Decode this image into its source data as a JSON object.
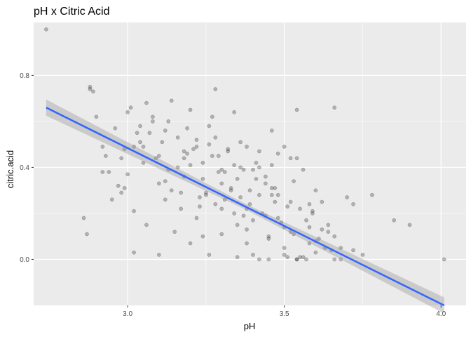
{
  "chart_data": {
    "type": "scatter",
    "title": "pH x Citric Acid",
    "xlabel": "pH",
    "ylabel": "citric.acid",
    "xlim": [
      2.7,
      4.08
    ],
    "ylim": [
      -0.2,
      1.03
    ],
    "x_ticks": [
      3.0,
      3.5,
      4.0
    ],
    "x_tick_labels": [
      "3.0",
      "3.5",
      "4.0"
    ],
    "y_ticks": [
      0.0,
      0.4,
      0.8
    ],
    "y_tick_labels": [
      "0.0",
      "0.4",
      "0.8"
    ],
    "grid": true,
    "legend": "none",
    "colors": {
      "panel": "#ebebeb",
      "gridline": "#ffffff",
      "points": "#000000",
      "fit_line": "#3366ff",
      "confidence_band": "#999999"
    },
    "series": [
      {
        "kind": "points",
        "opacity": 0.25,
        "x": [
          2.74,
          2.86,
          2.87,
          2.88,
          2.89,
          2.92,
          2.93,
          2.94,
          2.96,
          2.98,
          2.99,
          3.0,
          3.01,
          3.02,
          3.03,
          3.04,
          3.05,
          3.06,
          3.08,
          3.1,
          3.12,
          3.14,
          3.16,
          3.18,
          3.2,
          3.22,
          3.24,
          3.26,
          3.28,
          3.3,
          3.32,
          3.34,
          3.36,
          3.38,
          3.4,
          3.42,
          3.44,
          3.46,
          3.48,
          3.5,
          3.52,
          3.54,
          3.56,
          3.58,
          3.6,
          3.62,
          3.66,
          3.68,
          3.7,
          3.72,
          3.78,
          3.85,
          3.9,
          4.01,
          2.88,
          2.9,
          2.92,
          2.95,
          2.98,
          3.0,
          3.02,
          3.05,
          3.08,
          3.1,
          3.12,
          3.15,
          3.18,
          3.2,
          3.22,
          3.25,
          3.28,
          3.3,
          3.33,
          3.35,
          3.38,
          3.4,
          3.42,
          3.45,
          3.48,
          3.5,
          3.52,
          3.55,
          3.58,
          3.6,
          3.63,
          3.66,
          3.72,
          3.02,
          3.06,
          3.1,
          3.14,
          3.18,
          3.22,
          3.26,
          3.3,
          3.34,
          3.38,
          3.42,
          3.46,
          3.5,
          3.54,
          3.58,
          3.62,
          3.66,
          3.2,
          3.25,
          3.3,
          3.35,
          3.4,
          3.45,
          3.5,
          3.55,
          3.6,
          3.65,
          3.35,
          3.45,
          3.54,
          3.68,
          3.75,
          2.99,
          3.04,
          3.09,
          3.13,
          3.17,
          3.21,
          3.24,
          3.27,
          3.29,
          3.31,
          3.33,
          3.36,
          3.39,
          3.41,
          3.44,
          3.47,
          3.49,
          3.51,
          3.53,
          3.57,
          3.59,
          3.61,
          3.64,
          3.07,
          3.11,
          3.16,
          3.19,
          3.23,
          3.26,
          3.29,
          3.32,
          3.37,
          3.39,
          3.43,
          3.46,
          3.53,
          3.56,
          3.12,
          3.17,
          3.23,
          3.28,
          3.34,
          3.38,
          3.44,
          3.48,
          3.52,
          3.57,
          3.13,
          3.19,
          3.24,
          3.31,
          3.37,
          3.42,
          3.47,
          3.51,
          2.97,
          3.27,
          3.36,
          3.41,
          3.46,
          3.54,
          3.59,
          3.64
        ],
        "y": [
          1.0,
          0.18,
          0.11,
          0.75,
          0.73,
          0.49,
          0.45,
          0.38,
          0.57,
          0.29,
          0.31,
          0.64,
          0.66,
          0.21,
          0.55,
          0.51,
          0.49,
          0.68,
          0.62,
          0.45,
          0.56,
          0.69,
          0.53,
          0.47,
          0.65,
          0.49,
          0.42,
          0.58,
          0.74,
          0.39,
          0.47,
          0.64,
          0.4,
          0.49,
          0.39,
          0.47,
          0.33,
          0.56,
          0.28,
          0.49,
          0.44,
          0.65,
          0.39,
          0.24,
          0.3,
          0.25,
          0.66,
          0.05,
          0.27,
          0.24,
          0.28,
          0.17,
          0.15,
          0.0,
          0.74,
          0.62,
          0.38,
          0.26,
          0.44,
          0.37,
          0.03,
          0.42,
          0.6,
          0.33,
          0.26,
          0.12,
          0.36,
          0.07,
          0.52,
          0.29,
          0.24,
          0.11,
          0.31,
          0.15,
          0.22,
          0.02,
          0.28,
          0.1,
          0.18,
          0.05,
          0.12,
          0.22,
          0.14,
          0.08,
          0.05,
          0.1,
          0.04,
          0.49,
          0.15,
          0.02,
          0.3,
          0.44,
          0.18,
          0.02,
          0.33,
          0.2,
          0.07,
          0.0,
          0.31,
          0.14,
          0.0,
          0.07,
          0.13,
          0.0,
          0.41,
          0.28,
          0.22,
          0.35,
          0.17,
          0.09,
          0.02,
          0.01,
          0.03,
          0.04,
          0.01,
          0.0,
          0.0,
          0.0,
          0.02,
          0.48,
          0.58,
          0.44,
          0.39,
          0.29,
          0.48,
          0.35,
          0.45,
          0.38,
          0.26,
          0.3,
          0.27,
          0.24,
          0.35,
          0.19,
          0.25,
          0.16,
          0.23,
          0.11,
          0.17,
          0.21,
          0.09,
          0.15,
          0.55,
          0.51,
          0.4,
          0.57,
          0.23,
          0.5,
          0.45,
          0.48,
          0.39,
          0.3,
          0.2,
          0.41,
          0.34,
          0.01,
          0.34,
          0.22,
          0.27,
          0.53,
          0.41,
          0.13,
          0.36,
          0.46,
          0.25,
          0.0,
          0.6,
          0.46,
          0.1,
          0.38,
          0.19,
          0.4,
          0.31,
          0.01,
          0.32,
          0.62,
          0.51,
          0.42,
          0.28,
          0.44,
          0.2,
          0.12
        ]
      },
      {
        "kind": "regression",
        "x": [
          2.74,
          4.01
        ],
        "y": [
          0.66,
          -0.2
        ],
        "band_width": 0.035
      }
    ]
  }
}
